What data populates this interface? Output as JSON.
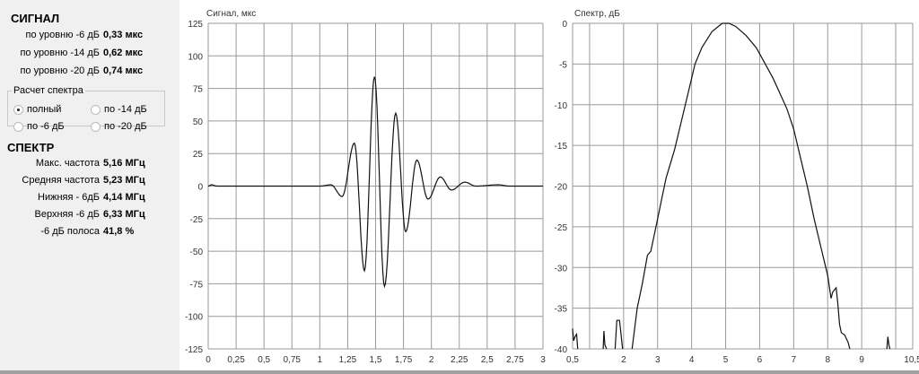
{
  "signal": {
    "title": "СИГНАЛ",
    "rows": [
      {
        "label": "по уровню -6 дБ",
        "value": "0,33 мкс"
      },
      {
        "label": "по уровню -14  дБ",
        "value": "0,62 мкс"
      },
      {
        "label": "по уровню -20  дБ",
        "value": "0,74 мкс"
      }
    ]
  },
  "spectrum_calc": {
    "title": "Расчет спектра",
    "options": [
      {
        "label": "полный",
        "selected": true
      },
      {
        "label": "по -14 дБ",
        "selected": false
      },
      {
        "label": "по -6 дБ",
        "selected": false
      },
      {
        "label": "по -20 дБ",
        "selected": false
      }
    ]
  },
  "spectrum": {
    "title": "СПЕКТР",
    "rows": [
      {
        "label": "Макс. частота",
        "value": "5,16 МГц"
      },
      {
        "label": "Средняя частота",
        "value": "5,23 МГц"
      },
      {
        "label": "Нижняя - 6дБ",
        "value": "4,14 МГц"
      },
      {
        "label": "Верхняя -6 дБ",
        "value": "6,33 МГц"
      },
      {
        "label": "-6 дБ полоса",
        "value": "41,8 %"
      }
    ]
  },
  "chart_data": [
    {
      "type": "line",
      "title": "Сигнал, мкс",
      "xlim": [
        0,
        3
      ],
      "ylim": [
        -125,
        125
      ],
      "grid": true,
      "xticks": [
        "0",
        "0,25",
        "0,5",
        "0,75",
        "1",
        "1,25",
        "1,5",
        "1,75",
        "2",
        "2,25",
        "2,5",
        "2,75",
        "3"
      ],
      "yticks": [
        "125",
        "100",
        "75",
        "50",
        "25",
        "0",
        "-25",
        "-50",
        "-75",
        "-100",
        "-125"
      ],
      "series": [
        {
          "x": [
            0,
            0.03,
            0.08,
            1.0,
            1.1,
            1.2,
            1.31,
            1.4,
            1.49,
            1.58,
            1.68,
            1.77,
            1.87,
            1.97,
            2.08,
            2.18,
            2.3,
            2.4,
            2.6,
            2.7,
            3.0
          ],
          "y": [
            0,
            1,
            0,
            0,
            1,
            -8,
            33,
            -65,
            84,
            -77,
            56,
            -35,
            20,
            -10,
            7,
            -3,
            3,
            0,
            1,
            0,
            0
          ]
        }
      ]
    },
    {
      "type": "line",
      "title": "Спектр, дБ",
      "xlim": [
        0.5,
        10.5
      ],
      "ylim": [
        -40,
        0
      ],
      "grid": true,
      "xticks": [
        "0,5",
        "2",
        "3",
        "4",
        "5",
        "6",
        "7",
        "8",
        "9",
        "10,5"
      ],
      "yticks": [
        "0",
        "-5",
        "-10",
        "-15",
        "-20",
        "-25",
        "-30",
        "-35",
        "-40"
      ],
      "series": [
        {
          "x": [
            0.5,
            0.53,
            0.57,
            0.62,
            0.65
          ],
          "y": [
            -37.5,
            -39,
            -38.5,
            -38.2,
            -40
          ]
        },
        {
          "x": [
            1.4,
            1.42,
            1.45,
            1.5
          ],
          "y": [
            -40,
            -37.8,
            -39.5,
            -40
          ]
        },
        {
          "x": [
            1.75,
            1.8,
            1.88,
            1.92,
            1.97
          ],
          "y": [
            -40,
            -36.5,
            -36.5,
            -38,
            -40
          ]
        },
        {
          "x": [
            2.25,
            2.4,
            2.55,
            2.7,
            2.8,
            2.9,
            3.0,
            3.1,
            3.25,
            3.5,
            3.7,
            3.9,
            4.1,
            4.3,
            4.6,
            4.9,
            5.1,
            5.3,
            5.6,
            5.9,
            6.1,
            6.4,
            6.8,
            7.0,
            7.2,
            7.4,
            7.6,
            7.8,
            8.0,
            8.1,
            8.15,
            8.25,
            8.3,
            8.35,
            8.4,
            8.5,
            8.6,
            8.65
          ],
          "y": [
            -40,
            -35,
            -32,
            -28.5,
            -28,
            -26,
            -24,
            -22,
            -19,
            -15.5,
            -12,
            -8.5,
            -5,
            -3,
            -1,
            0,
            0,
            -0.4,
            -1.5,
            -3,
            -4.5,
            -6.8,
            -10.5,
            -13,
            -16.5,
            -20,
            -24,
            -27.5,
            -31,
            -33.8,
            -33,
            -32.5,
            -34.5,
            -37,
            -38,
            -38.3,
            -39.2,
            -40
          ]
        },
        {
          "x": [
            9.74,
            9.77,
            9.8,
            9.83
          ],
          "y": [
            -40,
            -38.5,
            -39.5,
            -40
          ]
        }
      ]
    }
  ]
}
